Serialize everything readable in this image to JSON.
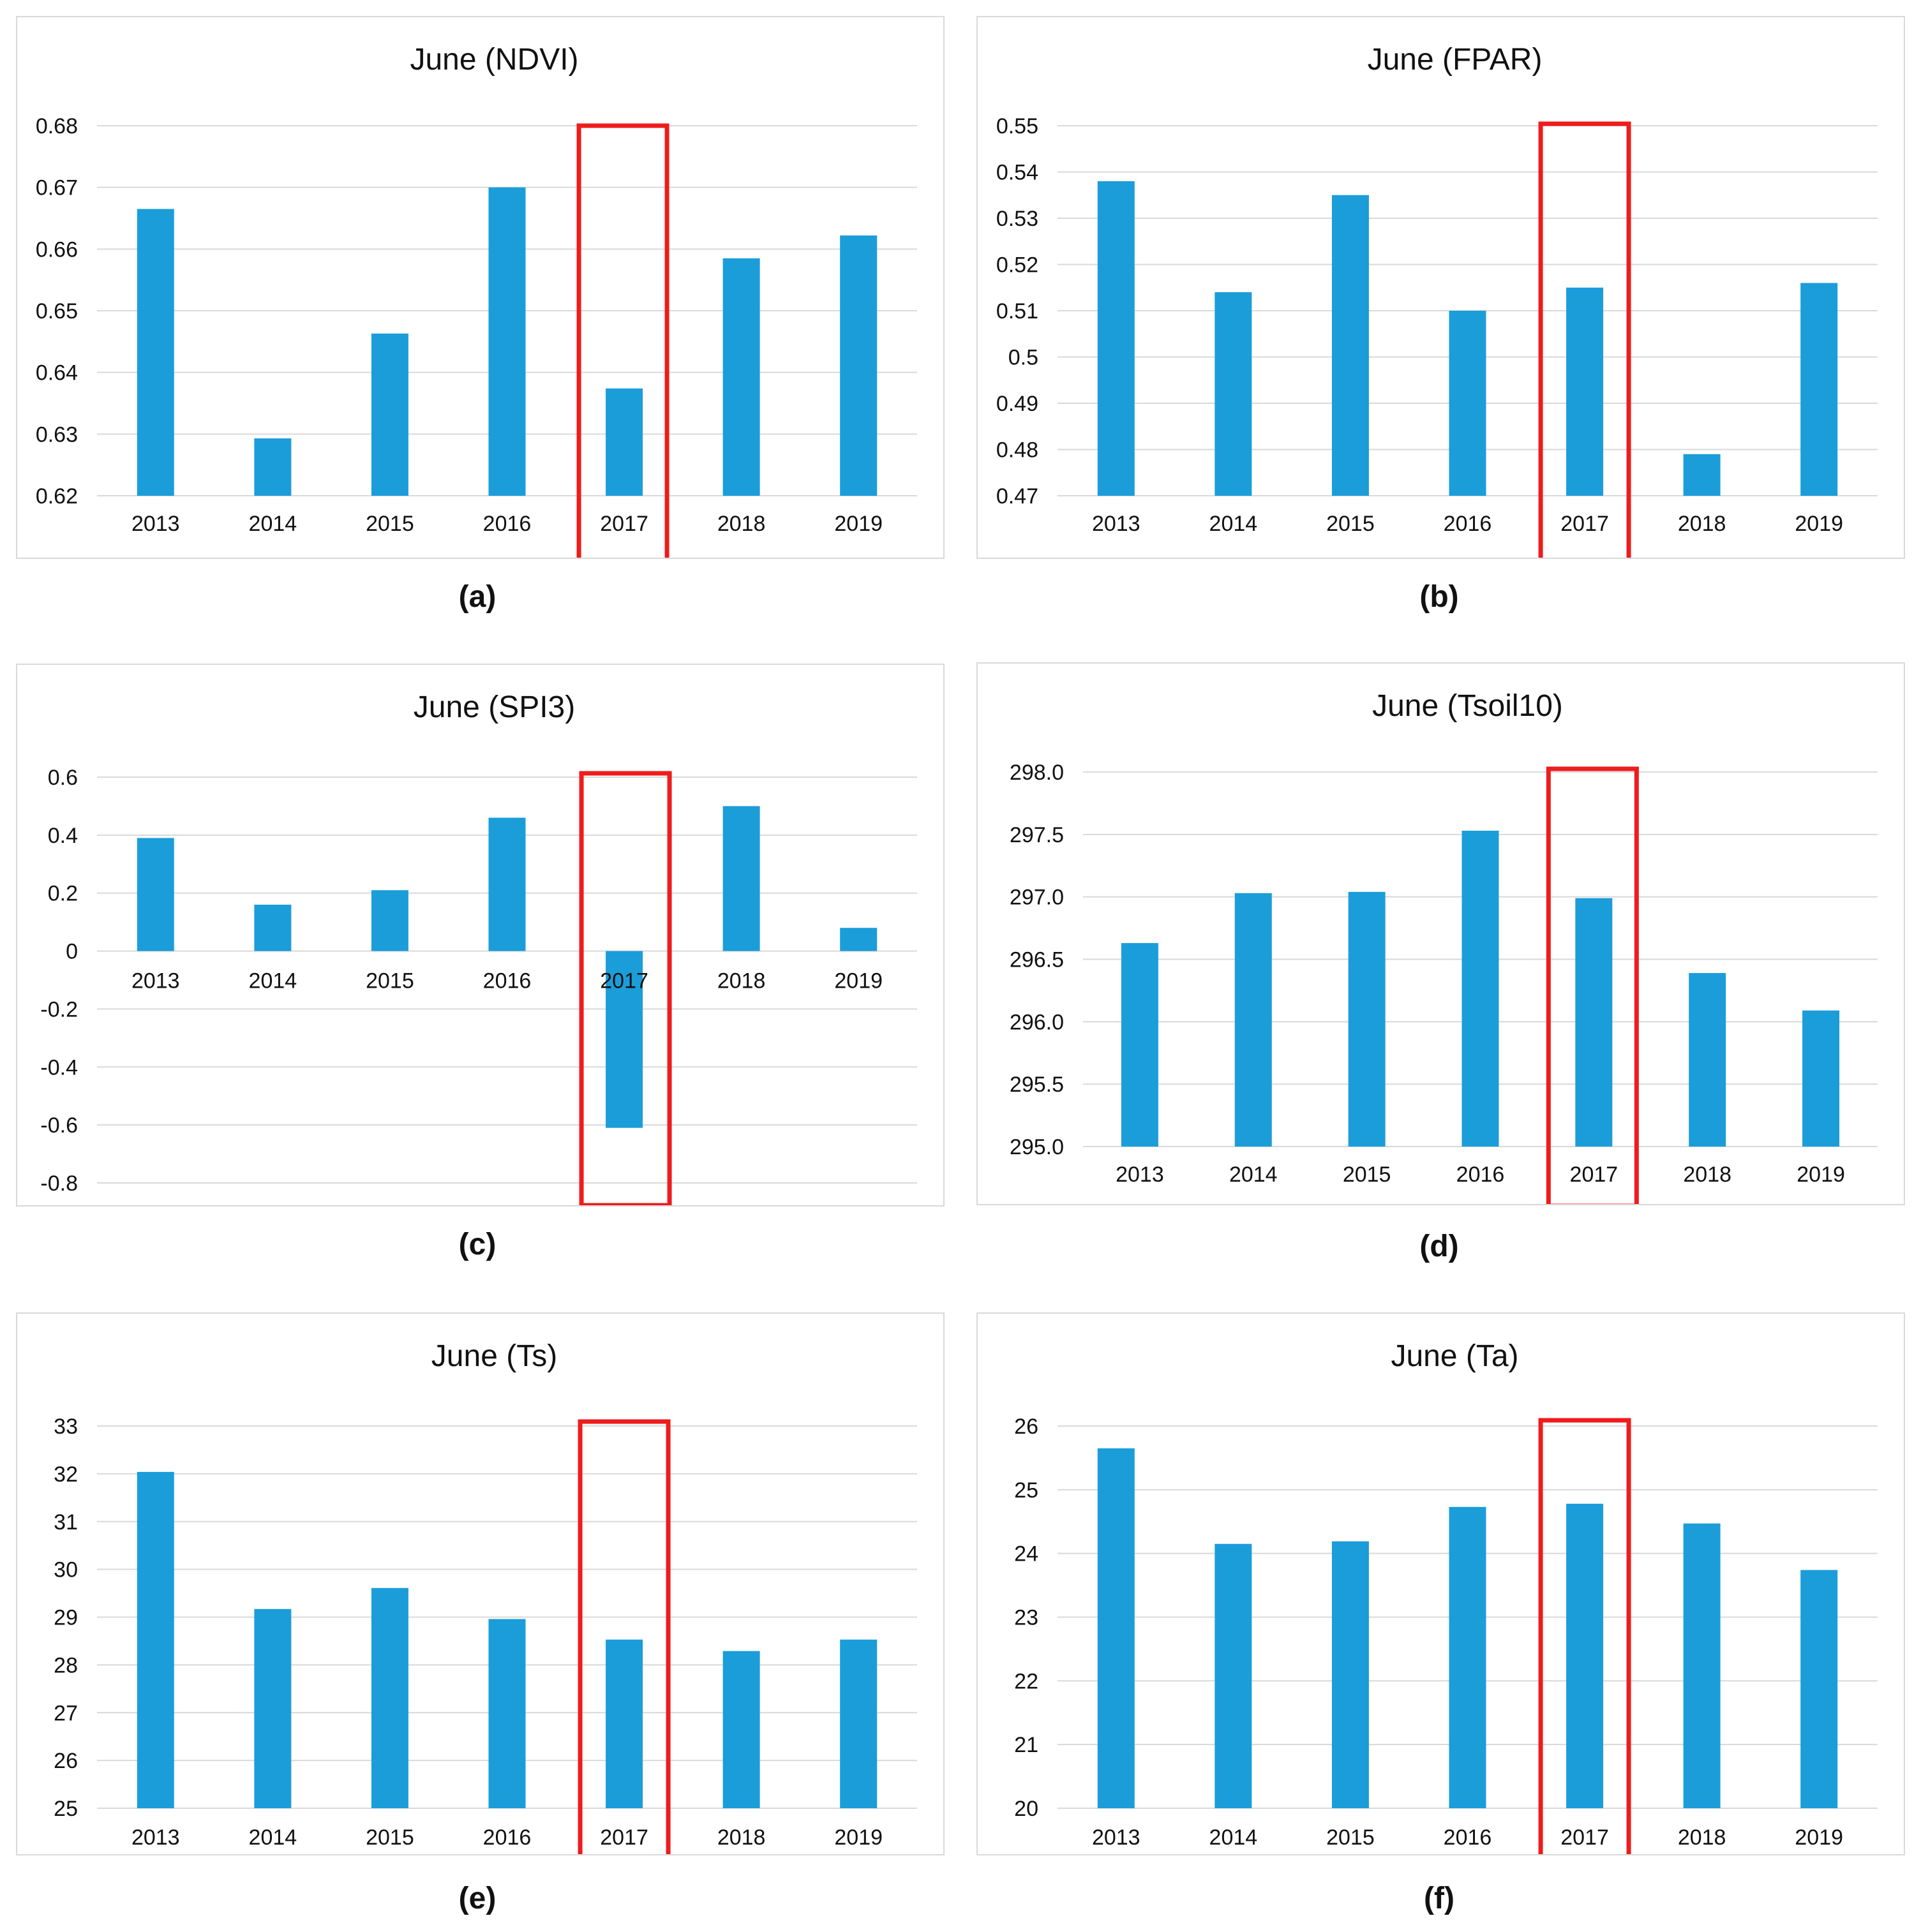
{
  "bar_color": "#1b9dd9",
  "highlight_color": "#ee1c1c",
  "grid_color": "#d9d9d9",
  "text_color": "#111111",
  "chart_data": [
    {
      "id": "a",
      "type": "bar",
      "title": "June (NDVI)",
      "caption": "(a)",
      "categories": [
        "2013",
        "2014",
        "2015",
        "2016",
        "2017",
        "2018",
        "2019"
      ],
      "values": [
        0.6665,
        0.6293,
        0.6463,
        0.67,
        0.6374,
        0.6585,
        0.6622
      ],
      "ylim": [
        0.62,
        0.68
      ],
      "yticks": [
        0.62,
        0.63,
        0.64,
        0.65,
        0.66,
        0.67,
        0.68
      ],
      "ytick_labels": [
        "0.62",
        "0.63",
        "0.64",
        "0.65",
        "0.66",
        "0.67",
        "0.68"
      ],
      "highlight_category": "2017",
      "xlabel": "",
      "ylabel": "",
      "grid": true
    },
    {
      "id": "b",
      "type": "bar",
      "title": "June (FPAR)",
      "caption": "(b)",
      "categories": [
        "2013",
        "2014",
        "2015",
        "2016",
        "2017",
        "2018",
        "2019"
      ],
      "values": [
        0.538,
        0.514,
        0.535,
        0.51,
        0.515,
        0.479,
        0.516
      ],
      "ylim": [
        0.47,
        0.55
      ],
      "yticks": [
        0.47,
        0.48,
        0.49,
        0.5,
        0.51,
        0.52,
        0.53,
        0.54,
        0.55
      ],
      "ytick_labels": [
        "0.47",
        "0.48",
        "0.49",
        "0.5",
        "0.51",
        "0.52",
        "0.53",
        "0.54",
        "0.55"
      ],
      "highlight_category": "2017",
      "xlabel": "",
      "ylabel": "",
      "grid": true
    },
    {
      "id": "c",
      "type": "bar",
      "title": "June (SPI3)",
      "caption": "(c)",
      "categories": [
        "2013",
        "2014",
        "2015",
        "2016",
        "2017",
        "2018",
        "2019"
      ],
      "values": [
        0.39,
        0.16,
        0.21,
        0.46,
        -0.61,
        0.5,
        0.08
      ],
      "ylim": [
        -0.8,
        0.6
      ],
      "yticks": [
        -0.8,
        -0.6,
        -0.4,
        -0.2,
        0,
        0.2,
        0.4,
        0.6
      ],
      "ytick_labels": [
        "-0.8",
        "-0.6",
        "-0.4",
        "-0.2",
        "0",
        "0.2",
        "0.4",
        "0.6"
      ],
      "highlight_category": "2017",
      "xlabel": "",
      "ylabel": "",
      "grid": true
    },
    {
      "id": "d",
      "type": "bar",
      "title": "June (Tsoil10)",
      "caption": "(d)",
      "categories": [
        "2013",
        "2014",
        "2015",
        "2016",
        "2017",
        "2018",
        "2019"
      ],
      "values": [
        296.63,
        297.03,
        297.04,
        297.53,
        296.99,
        296.39,
        296.09
      ],
      "ylim": [
        295.0,
        298.0
      ],
      "yticks": [
        295.0,
        295.5,
        296.0,
        296.5,
        297.0,
        297.5,
        298.0
      ],
      "ytick_labels": [
        "295.0",
        "295.5",
        "296.0",
        "296.5",
        "297.0",
        "297.5",
        "298.0"
      ],
      "highlight_category": "2017",
      "xlabel": "",
      "ylabel": "",
      "grid": true
    },
    {
      "id": "e",
      "type": "bar",
      "title": "June (Ts)",
      "caption": "(e)",
      "categories": [
        "2013",
        "2014",
        "2015",
        "2016",
        "2017",
        "2018",
        "2019"
      ],
      "values": [
        32.04,
        29.17,
        29.61,
        28.96,
        28.53,
        28.29,
        28.53
      ],
      "ylim": [
        25,
        33
      ],
      "yticks": [
        25,
        26,
        27,
        28,
        29,
        30,
        31,
        32,
        33
      ],
      "ytick_labels": [
        "25",
        "26",
        "27",
        "28",
        "29",
        "30",
        "31",
        "32",
        "33"
      ],
      "highlight_category": "2017",
      "xlabel": "",
      "ylabel": "",
      "grid": true
    },
    {
      "id": "f",
      "type": "bar",
      "title": "June (Ta)",
      "caption": "(f)",
      "categories": [
        "2013",
        "2014",
        "2015",
        "2016",
        "2017",
        "2018",
        "2019"
      ],
      "values": [
        25.65,
        24.15,
        24.19,
        24.73,
        24.78,
        24.47,
        23.74
      ],
      "ylim": [
        20,
        26
      ],
      "yticks": [
        20,
        21,
        22,
        23,
        24,
        25,
        26
      ],
      "ytick_labels": [
        "20",
        "21",
        "22",
        "23",
        "24",
        "25",
        "26"
      ],
      "highlight_category": "2017",
      "xlabel": "",
      "ylabel": "",
      "grid": true
    }
  ]
}
